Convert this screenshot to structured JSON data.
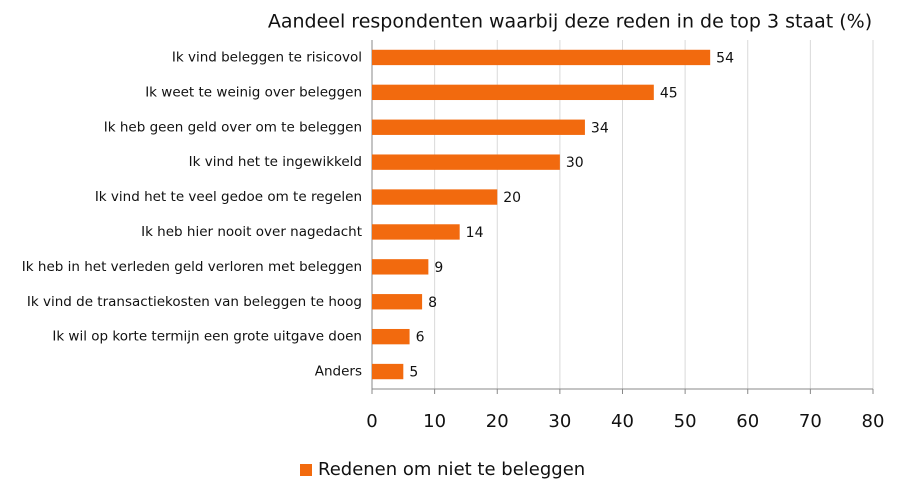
{
  "chart_data": {
    "type": "bar",
    "orientation": "horizontal",
    "title": "Aandeel respondenten waarbij deze reden in de top 3 staat (%)",
    "categories": [
      "Ik vind beleggen te risicovol",
      "Ik weet te weinig over beleggen",
      "Ik heb geen geld over om te beleggen",
      "Ik vind het te ingewikkeld",
      "Ik vind het te veel gedoe om te regelen",
      "Ik heb hier nooit over nagedacht",
      "Ik heb in het verleden geld verloren met beleggen",
      "Ik vind de transactiekosten van beleggen te hoog",
      "Ik wil op korte termijn een grote uitgave doen",
      "Anders"
    ],
    "series": [
      {
        "name": "Redenen om niet te beleggen",
        "color": "#f26a0e",
        "values": [
          54,
          45,
          34,
          30,
          20,
          14,
          9,
          8,
          6,
          5
        ]
      }
    ],
    "xlim": [
      0,
      80
    ],
    "xticks": [
      0,
      10,
      20,
      30,
      40,
      50,
      60,
      70,
      80
    ],
    "grid": true,
    "legend": "bottom"
  }
}
